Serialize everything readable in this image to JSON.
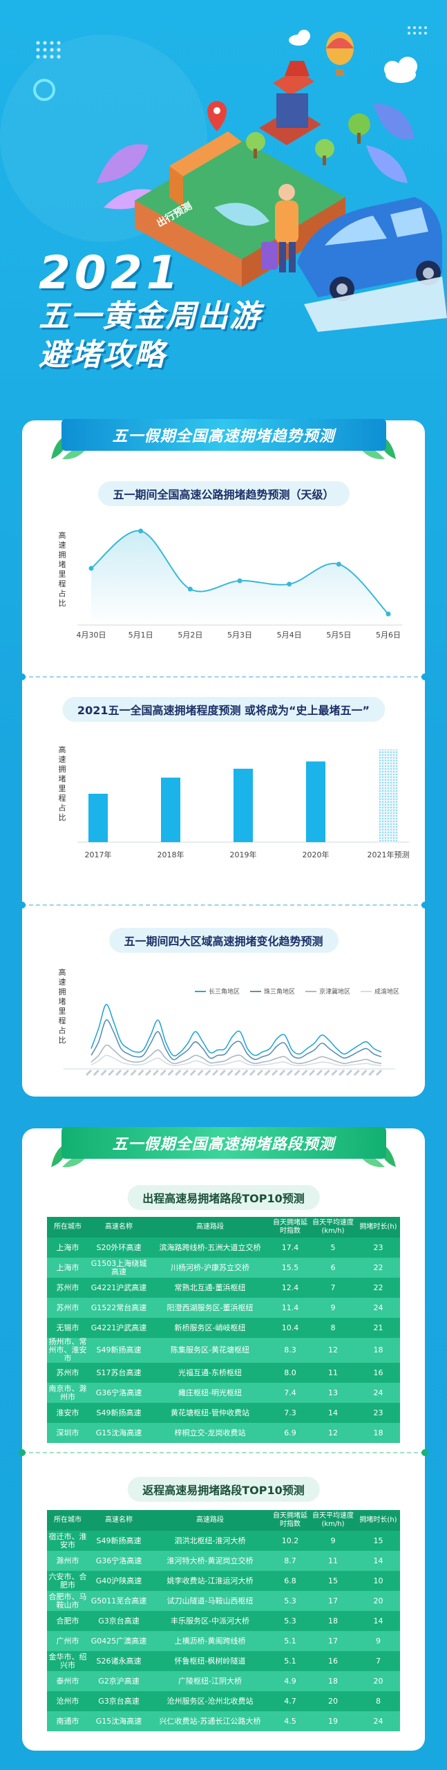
{
  "hero": {
    "year": "2021",
    "title_line1": "五一黄金周出游",
    "title_line2": "避堵攻略",
    "sign_text": "出行预测"
  },
  "section1": {
    "banner": "五一假期全国高速拥堵趋势预测",
    "chart1": {
      "title": "五一期间全国高速公路拥堵趋势预测（天级）",
      "ylabel": "高速拥堵里程占比"
    },
    "chart2": {
      "title": "2021五一全国高速拥堵程度预测 或将成为“史上最堵五一”",
      "ylabel": "高速拥堵里程占比"
    },
    "chart3": {
      "title": "五一期间四大区域高速拥堵变化趋势预测",
      "ylabel": "高速拥堵里程占比"
    }
  },
  "chart_data": [
    {
      "type": "line",
      "title": "五一期间全国高速公路拥堵趋势预测（天级）",
      "categories": [
        "4月30日",
        "5月1日",
        "5月2日",
        "5月3日",
        "5月4日",
        "5月5日",
        "5月6日"
      ],
      "values": [
        55,
        100,
        30,
        40,
        36,
        60,
        0
      ],
      "ylabel": "高速拥堵里程占比",
      "ylim": [
        0,
        100
      ],
      "color": "#37b8d9"
    },
    {
      "type": "bar",
      "title": "2021五一全国高速拥堵程度预测 或将成为“史上最堵五一”",
      "categories": [
        "2017年",
        "2018年",
        "2019年",
        "2020年",
        "2021年预测"
      ],
      "values": [
        60,
        80,
        91,
        100,
        115
      ],
      "ylabel": "高速拥堵里程占比",
      "ylim": [
        0,
        120
      ],
      "color": "#1ab3ea"
    },
    {
      "type": "line",
      "title": "五一期间四大区域高速拥堵变化趋势预测",
      "ylabel": "高速拥堵里程占比",
      "series": [
        {
          "name": "长三角地区",
          "color": "#27a7d6",
          "values": [
            30,
            60,
            95,
            70,
            40,
            30,
            25,
            28,
            50,
            72,
            40,
            20,
            25,
            38,
            55,
            40,
            24,
            28,
            30,
            48,
            55,
            30,
            20,
            25,
            30,
            45,
            50,
            28,
            22,
            30,
            38,
            50,
            42,
            30,
            22,
            28,
            35,
            40,
            30,
            25
          ]
        },
        {
          "name": "珠三角地区",
          "color": "#5a8fb6",
          "values": [
            20,
            40,
            72,
            55,
            30,
            22,
            18,
            20,
            38,
            55,
            30,
            14,
            20,
            28,
            40,
            30,
            16,
            20,
            22,
            36,
            40,
            22,
            14,
            18,
            22,
            34,
            38,
            20,
            16,
            22,
            28,
            38,
            30,
            22,
            16,
            20,
            26,
            30,
            22,
            18
          ]
        },
        {
          "name": "京津冀地区",
          "color": "#a9b8c4",
          "values": [
            10,
            20,
            35,
            28,
            18,
            12,
            10,
            12,
            20,
            28,
            16,
            8,
            10,
            14,
            20,
            16,
            9,
            10,
            12,
            18,
            20,
            12,
            8,
            10,
            12,
            16,
            18,
            10,
            8,
            10,
            14,
            18,
            15,
            11,
            8,
            10,
            12,
            14,
            10,
            8
          ]
        },
        {
          "name": "成渝地区",
          "color": "#d5dde3",
          "values": [
            6,
            12,
            20,
            16,
            10,
            7,
            6,
            7,
            12,
            16,
            9,
            5,
            6,
            8,
            12,
            9,
            5,
            6,
            7,
            10,
            12,
            7,
            5,
            6,
            7,
            9,
            10,
            6,
            5,
            6,
            8,
            10,
            9,
            6,
            5,
            6,
            7,
            8,
            6,
            5
          ]
        }
      ]
    }
  ],
  "section2": {
    "banner": "五一假期全国高速拥堵路段预测",
    "table1": {
      "title": "出程高速易拥堵路段TOP10预测",
      "headers": [
        "所在城市",
        "高速名称",
        "高速路段",
        "自天拥堵延时指数",
        "自天平均速度(km/h)",
        "拥堵时长(h)"
      ],
      "rows": [
        [
          "上海市",
          "S20外环高速",
          "滨海路跨线桥-五洲大道立交桥",
          "17.4",
          "5",
          "23"
        ],
        [
          "上海市",
          "G1503上海绕城高速",
          "川杨河桥-沪康苏立交桥",
          "15.5",
          "6",
          "22"
        ],
        [
          "苏州市",
          "G4221沪武高速",
          "常熟北互通-董浜枢纽",
          "12.4",
          "7",
          "22"
        ],
        [
          "苏州市",
          "G1522常台高速",
          "阳澄西湖服务区-董浜枢纽",
          "11.4",
          "9",
          "24"
        ],
        [
          "无锡市",
          "G4221沪武高速",
          "新桥服务区-峭岐枢纽",
          "10.4",
          "8",
          "21"
        ],
        [
          "扬州市、常州市、淮安市",
          "S49新扬高速",
          "陈集服务区-黄花塘枢纽",
          "8.3",
          "12",
          "18"
        ],
        [
          "苏州市",
          "S17苏台高速",
          "光福互通-东桥枢纽",
          "8.0",
          "11",
          "16"
        ],
        [
          "南京市、滁州市",
          "G36宁洛高速",
          "瘫庄枢纽-明光枢纽",
          "7.4",
          "13",
          "24"
        ],
        [
          "淮安市",
          "S49新扬高速",
          "黄花塘枢纽-管仲收费站",
          "7.3",
          "14",
          "23"
        ],
        [
          "深圳市",
          "G15沈海高速",
          "梓桐立交-龙岗收费站",
          "6.9",
          "12",
          "18"
        ]
      ]
    },
    "table2": {
      "title": "返程高速易拥堵路段TOP10预测",
      "headers": [
        "所在城市",
        "高速名称",
        "高速路段",
        "自天拥堵延时指数",
        "自天平均速度(km/h)",
        "拥堵时长(h)"
      ],
      "rows": [
        [
          "宿迁市、淮安市",
          "S49新扬高速",
          "泗洪北枢纽-淮河大桥",
          "10.2",
          "9",
          "15"
        ],
        [
          "滁州市",
          "G36宁洛高速",
          "淮河特大桥-黄泥岗立交桥",
          "8.7",
          "11",
          "14"
        ],
        [
          "六安市、合肥市",
          "G40沪陕高速",
          "姚李收费站-江淮运河大桥",
          "6.8",
          "15",
          "10"
        ],
        [
          "合肥市、马鞍山市",
          "G5011芜合高速",
          "试刀山隧道-马鞍山西枢纽",
          "5.3",
          "17",
          "20"
        ],
        [
          "合肥市",
          "G3京台高速",
          "丰乐服务区-中派河大桥",
          "5.3",
          "18",
          "14"
        ],
        [
          "广州市",
          "G0425广澳高速",
          "上横沥桥-黄阁跨线桥",
          "5.1",
          "17",
          "9"
        ],
        [
          "金华市、绍兴市",
          "S26诸永高速",
          "怀鲁枢纽-枫树岭隧道",
          "5.1",
          "16",
          "7"
        ],
        [
          "泰州市",
          "G2京沪高速",
          "广陵枢纽-江阴大桥",
          "4.9",
          "18",
          "20"
        ],
        [
          "沧州市",
          "G3京台高速",
          "沧州服务区-沧州北收费站",
          "4.7",
          "20",
          "8"
        ],
        [
          "南通市",
          "G15沈海高速",
          "兴仁收费站-苏通长江公路大桥",
          "4.5",
          "19",
          "24"
        ]
      ]
    }
  }
}
